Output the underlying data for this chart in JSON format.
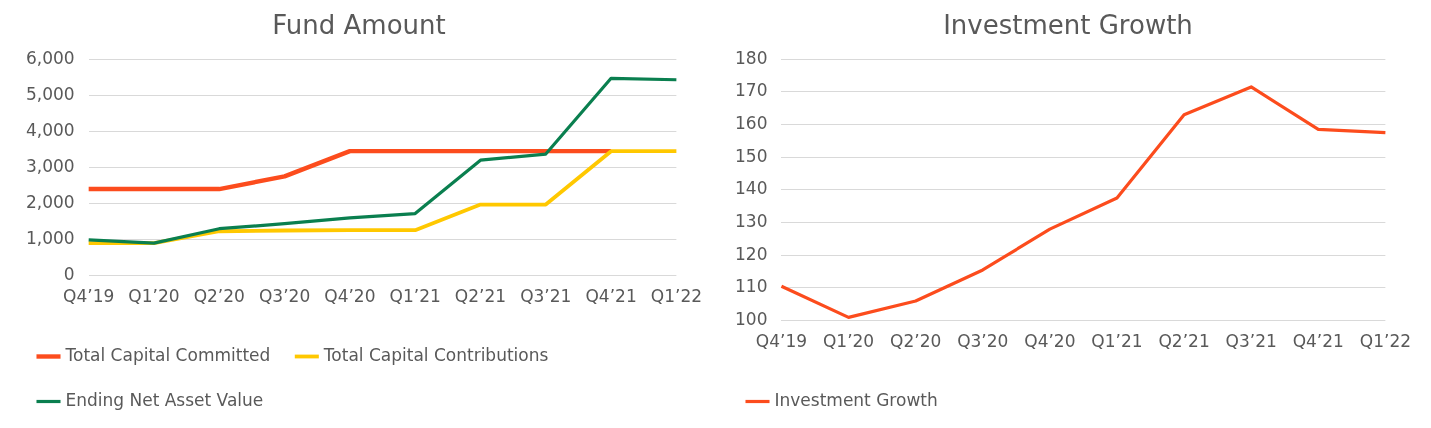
{
  "chart_data": [
    {
      "type": "line",
      "title": "Fund Amount",
      "categories": [
        "Q4’19",
        "Q1’20",
        "Q2’20",
        "Q3’20",
        "Q4’20",
        "Q1’21",
        "Q2’21",
        "Q3’21",
        "Q4’21",
        "Q1’22"
      ],
      "series": [
        {
          "name": "Total Capital Committed",
          "color": "#fc4c1d",
          "values": [
            2400,
            2400,
            2400,
            2750,
            3450,
            3450,
            3450,
            3450,
            3450,
            null
          ]
        },
        {
          "name": "Total Capital Contributions",
          "color": "#ffc800",
          "values": [
            900,
            900,
            1230,
            1250,
            1260,
            1260,
            1970,
            1970,
            3450,
            3450
          ]
        },
        {
          "name": "Ending Net Asset Value",
          "color": "#0a7f4f",
          "values": [
            990,
            900,
            1300,
            1440,
            1600,
            1720,
            3200,
            3370,
            5470,
            5430
          ]
        }
      ],
      "ylim": [
        0,
        6000
      ],
      "yticks": [
        {
          "value": 0,
          "label": "0"
        },
        {
          "value": 1000,
          "label": "1,000"
        },
        {
          "value": 2000,
          "label": "2,000"
        },
        {
          "value": 3000,
          "label": "3,000"
        },
        {
          "value": 4000,
          "label": "4,000"
        },
        {
          "value": 5000,
          "label": "5,000"
        },
        {
          "value": 6000,
          "label": "6,000"
        }
      ],
      "grid": "y",
      "legend": "bottom",
      "marker": "none"
    },
    {
      "type": "line",
      "title": "Investment Growth",
      "categories": [
        "Q4’19",
        "Q1’20",
        "Q2’20",
        "Q3’20",
        "Q4’20",
        "Q1’21",
        "Q2’21",
        "Q3’21",
        "Q4’21",
        "Q1’22"
      ],
      "series": [
        {
          "name": "Investment Growth",
          "color": "#fc4c1d",
          "values": [
            110.5,
            101,
            106,
            115.5,
            128,
            137.5,
            163,
            171.5,
            158.5,
            157.5
          ]
        }
      ],
      "ylim": [
        100,
        180
      ],
      "yticks": [
        100,
        110,
        120,
        130,
        140,
        150,
        160,
        170,
        180
      ],
      "grid": "y",
      "legend": "bottom",
      "marker": "none"
    }
  ]
}
